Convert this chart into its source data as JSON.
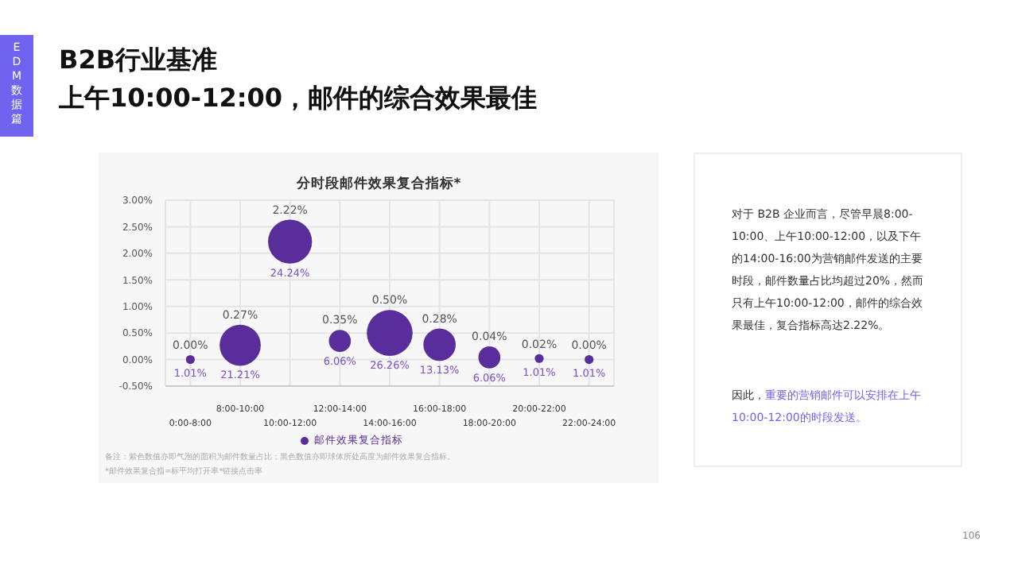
{
  "chart_data": {
    "type": "bubble",
    "title": "分时段邮件效果复合指标*",
    "categories": [
      "0:00-8:00",
      "8:00-10:00",
      "10:00-12:00",
      "12:00-14:00",
      "14:00-16:00",
      "16:00-18:00",
      "18:00-20:00",
      "20:00-22:00",
      "22:00-24:00"
    ],
    "series": [
      {
        "name": "邮件效果复合指标",
        "color": "#5a2e9a",
        "values": [
          0,
          0.27,
          2.22,
          0.35,
          0.5,
          0.28,
          0.04,
          0.02,
          0
        ],
        "sizes": [
          0.038,
          0.808,
          0.923,
          0.231,
          1,
          0.5,
          0.231,
          0.038,
          0.038
        ],
        "value_labels": [
          "0.00%",
          "0.27%",
          "2.22%",
          "0.35%",
          "0.50%",
          "0.28%",
          "0.04%",
          "0.02%",
          "0.00%"
        ]
      }
    ],
    "ylim": [
      -0.5,
      3
    ],
    "yticks": [
      {
        "value": -0.5,
        "label": "-0.50%"
      },
      {
        "value": 0,
        "label": "0.00%"
      },
      {
        "value": 0.5,
        "label": "0.50%"
      },
      {
        "value": 1,
        "label": "1.00%"
      },
      {
        "value": 1.5,
        "label": "1.50%"
      },
      {
        "value": 2,
        "label": "2.00%"
      },
      {
        "value": 2.5,
        "label": "2.50%"
      },
      {
        "value": 3,
        "label": "3.00%"
      }
    ],
    "grid": true,
    "legend": "bottom",
    "annotations": [
      "EDM 数据篇",
      "B2B行业基准",
      "上午10:00-12:00，邮件的综合效果最佳",
      "对于 B2B 企业而言，尽管早晨8:00-10:00、上午10:00-12:00，以及下午的14:00-16:00为营销邮件发送的主要时段，邮件数量占比均超过20%，然而只有上午10:00-12:00，邮件的综合效果最佳，复合指标高达2.22%。",
      "因此，",
      "重要的营销邮件可以安排在上午10:00-12:00的时段发送。",
      "备注：紫色数值亦即气泡的面积为邮件数量占比；黑色数值亦即球体所处高度为邮件效果复合指标。",
      "*邮件效果复合指=标平均打开率*链接点击率",
      "106",
      {
        "text": "1.01%",
        "x": "0:00-8:00",
        "y": 0
      },
      {
        "text": "21.21%",
        "x": "8:00-10:00",
        "y": 0.27
      },
      {
        "text": "24.24%",
        "x": "10:00-12:00",
        "y": 2.22
      },
      {
        "text": "6.06%",
        "x": "12:00-14:00",
        "y": 0.35
      },
      {
        "text": "26.26%",
        "x": "14:00-16:00",
        "y": 0.5
      },
      {
        "text": "13.13%",
        "x": "16:00-18:00",
        "y": 0.28
      },
      {
        "text": "6.06%",
        "x": "18:00-20:00",
        "y": 0.04
      },
      {
        "text": "1.01%",
        "x": "20:00-22:00",
        "y": 0.02
      },
      {
        "text": "1.01%",
        "x": "22:00-24:00",
        "y": 0
      }
    ]
  }
}
